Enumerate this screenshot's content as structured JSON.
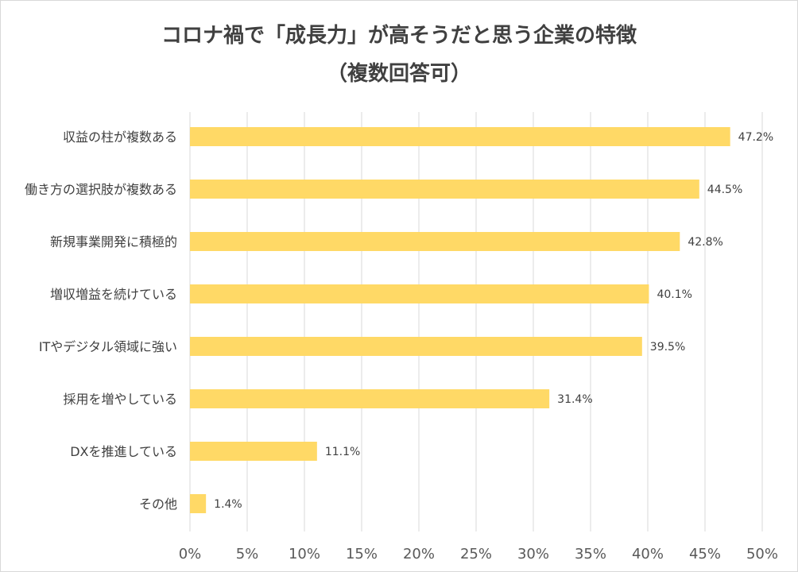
{
  "chart_data": {
    "type": "bar",
    "orientation": "horizontal",
    "title": "コロナ禍で「成長力」が高そうだと思う企業の特徴",
    "subtitle": "（複数回答可）",
    "categories": [
      "収益の柱が複数ある",
      "働き方の選択肢が複数ある",
      "新規事業開発に積極的",
      "増収増益を続けている",
      "ITやデジタル領域に強い",
      "採用を増やしている",
      "DXを推進している",
      "その他"
    ],
    "values": [
      47.2,
      44.5,
      42.8,
      40.1,
      39.5,
      31.4,
      11.1,
      1.4
    ],
    "value_labels": [
      "47.2%",
      "44.5%",
      "42.8%",
      "40.1%",
      "39.5%",
      "31.4%",
      "11.1%",
      "1.4%"
    ],
    "xlim": [
      0,
      50
    ],
    "x_ticks": [
      0,
      5,
      10,
      15,
      20,
      25,
      30,
      35,
      40,
      45,
      50
    ],
    "x_tick_labels": [
      "0%",
      "5%",
      "10%",
      "15%",
      "20%",
      "25%",
      "30%",
      "35%",
      "40%",
      "45%",
      "50%"
    ],
    "xlabel": "",
    "ylabel": "",
    "grid": "vertical",
    "legend": "none",
    "bar_color": "#ffd966",
    "grid_color": "#d9d9d9"
  }
}
